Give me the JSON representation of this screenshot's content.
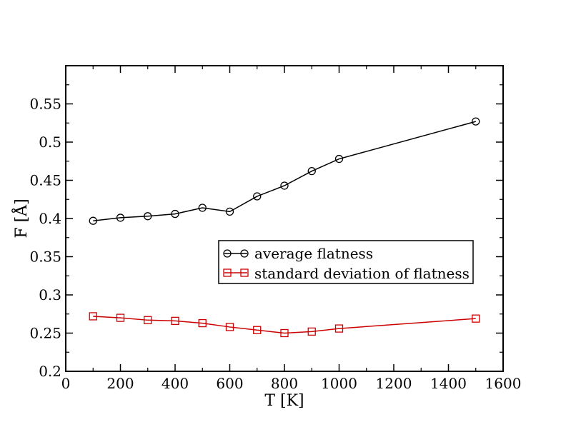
{
  "chart_data": {
    "type": "line",
    "title": "",
    "xlabel": "T [K]",
    "ylabel": "F [Å]",
    "xlim": [
      0,
      1600
    ],
    "ylim": [
      0.2,
      0.6
    ],
    "xticks": [
      0,
      200,
      400,
      600,
      800,
      1000,
      1200,
      1400,
      1600
    ],
    "yticks": [
      0.2,
      0.25,
      0.3,
      0.35,
      0.4,
      0.45,
      0.5,
      0.55
    ],
    "xtick_labels": [
      "0",
      "200",
      "400",
      "600",
      "800",
      "1000",
      "1200",
      "1400",
      "1600"
    ],
    "ytick_labels": [
      "0.2",
      "0.25",
      "0.3",
      "0.35",
      "0.4",
      "0.45",
      "0.5",
      "0.55"
    ],
    "grid": false,
    "legend_position": "center-right",
    "series": [
      {
        "name": "average flatness",
        "color": "#000000",
        "marker": "circle",
        "x": [
          100,
          200,
          300,
          400,
          500,
          600,
          700,
          800,
          900,
          1000,
          1500
        ],
        "y": [
          0.397,
          0.401,
          0.403,
          0.406,
          0.414,
          0.409,
          0.429,
          0.443,
          0.462,
          0.478,
          0.527
        ]
      },
      {
        "name": "standard deviation of flatness",
        "color": "#cc0000",
        "marker": "square",
        "x": [
          100,
          200,
          300,
          400,
          500,
          600,
          700,
          800,
          900,
          1000,
          1500
        ],
        "y": [
          0.272,
          0.27,
          0.267,
          0.266,
          0.263,
          0.258,
          0.254,
          0.25,
          0.252,
          0.256,
          0.269
        ]
      }
    ]
  }
}
